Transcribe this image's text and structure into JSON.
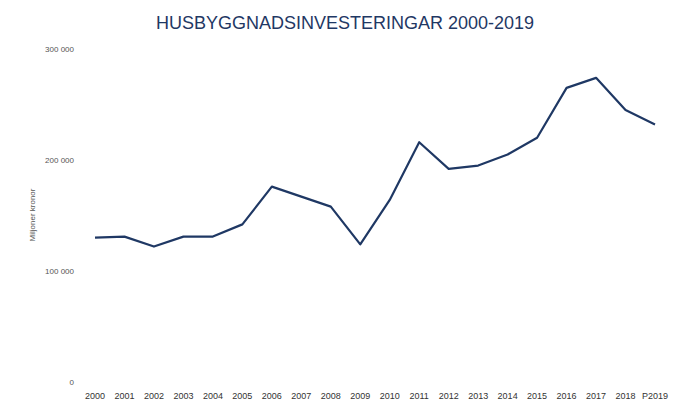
{
  "chart_data": {
    "type": "line",
    "title": "HUSBYGGNADSINVESTERINGAR 2000-2019",
    "y_label": "Miljoner kronor",
    "categories": [
      "2000",
      "2001",
      "2002",
      "2003",
      "2004",
      "2005",
      "2006",
      "2007",
      "2008",
      "2009",
      "2010",
      "2011",
      "2012",
      "2013",
      "2014",
      "2015",
      "2016",
      "2017",
      "2018",
      "P2019"
    ],
    "values": [
      130000,
      131000,
      122000,
      131000,
      131000,
      142000,
      176000,
      167000,
      158000,
      124000,
      164000,
      216000,
      192000,
      195000,
      205000,
      220000,
      265000,
      274000,
      245000,
      232000
    ],
    "color": "#1f3864",
    "ylim": [
      0,
      300000
    ],
    "yticks": [
      0,
      {
        "value": 100000,
        "label": "100 000"
      },
      {
        "value": 200000,
        "label": "200 000"
      },
      {
        "value": 300000,
        "label": "300 000"
      }
    ],
    "grid": false
  }
}
